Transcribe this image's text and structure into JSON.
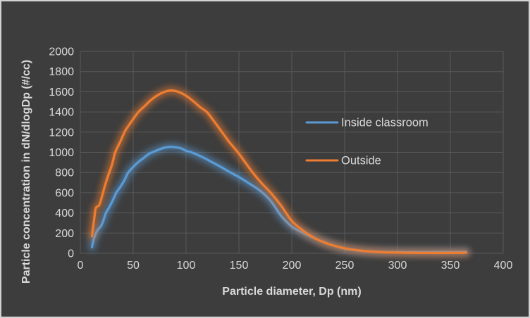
{
  "window": {
    "background_color": "#3d3d3d",
    "border_color": "#d2d2d2",
    "grid_color": "#595959",
    "text_color": "#d9d9d9"
  },
  "chart_data": {
    "type": "line",
    "title": "",
    "xlabel": "Particle diameter, Dp (nm)",
    "ylabel": "Particle concentration in dN/dlogDp (#/cc)",
    "xlim": [
      0,
      400
    ],
    "ylim": [
      0,
      2000
    ],
    "xticks": [
      0,
      50,
      100,
      150,
      200,
      250,
      300,
      350,
      400
    ],
    "yticks": [
      0,
      200,
      400,
      600,
      800,
      1000,
      1200,
      1400,
      1600,
      1800,
      2000
    ],
    "grid": true,
    "legend_position": "center-right",
    "line_style": "smooth-with-glow",
    "series": [
      {
        "name": "Inside classroom",
        "color": "#5B9BD5",
        "peak": {
          "x": 85,
          "y": 1054
        },
        "x": [
          11,
          12,
          13,
          14,
          15,
          16,
          17,
          19,
          21,
          24,
          27,
          30,
          34,
          38,
          42,
          45,
          50,
          55,
          60,
          65,
          70,
          75,
          80,
          85,
          90,
          95,
          100,
          105,
          115,
          125,
          133,
          142,
          150,
          160,
          170,
          180,
          190,
          200,
          210,
          220,
          230,
          240,
          250,
          260,
          270,
          280,
          290,
          300,
          320,
          340,
          365
        ],
        "y": [
          60,
          110,
          150,
          180,
          205,
          222,
          240,
          262,
          300,
          395,
          450,
          510,
          600,
          660,
          730,
          795,
          855,
          905,
          945,
          985,
          1008,
          1030,
          1047,
          1054,
          1050,
          1040,
          1015,
          1000,
          955,
          900,
          855,
          800,
          755,
          690,
          620,
          520,
          370,
          265,
          205,
          155,
          112,
          75,
          45,
          30,
          20,
          15,
          12,
          12,
          12,
          13,
          14
        ]
      },
      {
        "name": "Outside",
        "color": "#ED7D31",
        "peak": {
          "x": 86,
          "y": 1612
        },
        "x": [
          11,
          12,
          13,
          14,
          15,
          16.5,
          18,
          20,
          23,
          26,
          30,
          33,
          38,
          42,
          46,
          50,
          55,
          61,
          67,
          73,
          80,
          86,
          93,
          100,
          107,
          113,
          120,
          127,
          134,
          141,
          149,
          156,
          163,
          171,
          180,
          190,
          200,
          210,
          220,
          230,
          240,
          250,
          260,
          270,
          280,
          290,
          300,
          315,
          330,
          350,
          365
        ],
        "y": [
          170,
          255,
          330,
          420,
          455,
          465,
          480,
          545,
          660,
          760,
          880,
          1000,
          1110,
          1205,
          1270,
          1330,
          1400,
          1460,
          1520,
          1565,
          1600,
          1612,
          1598,
          1560,
          1505,
          1450,
          1395,
          1300,
          1200,
          1100,
          1000,
          900,
          800,
          700,
          600,
          470,
          320,
          230,
          160,
          110,
          75,
          50,
          33,
          22,
          14,
          9,
          7,
          5,
          4,
          4,
          6
        ]
      }
    ]
  }
}
